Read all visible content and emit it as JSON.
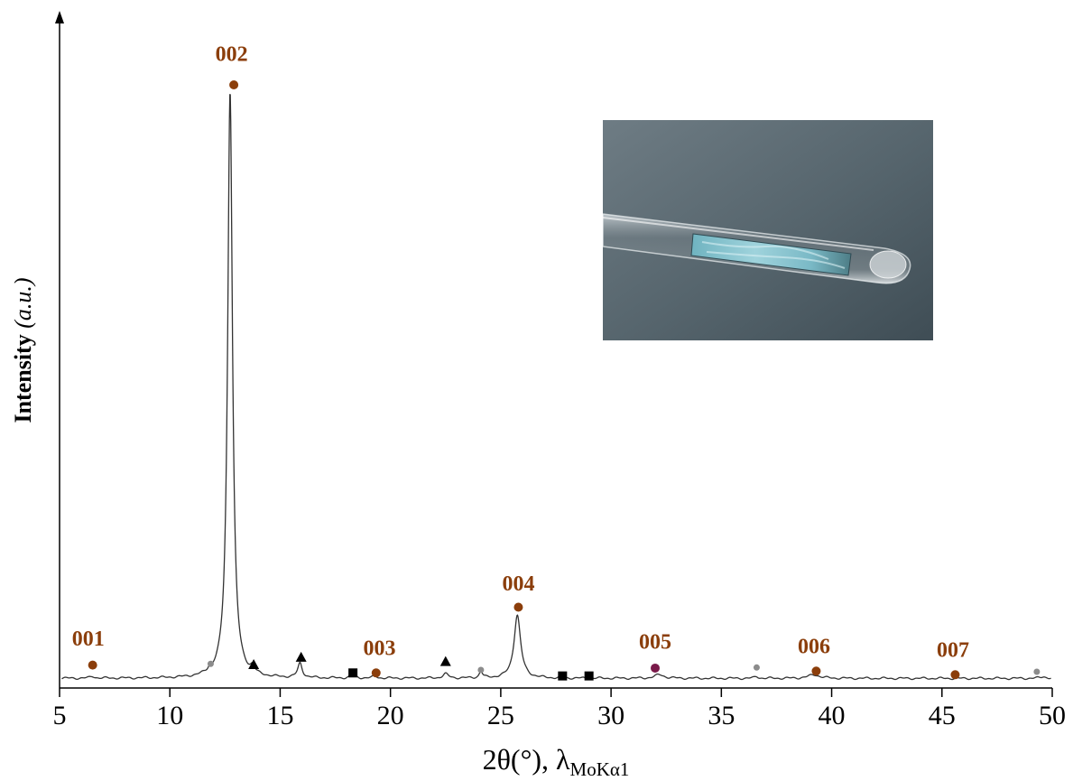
{
  "chart_data": {
    "type": "line",
    "title": "",
    "xlabel_main": "2θ(°), λ",
    "xlabel_sub": "MoKα1",
    "ylabel_main": "Intensity ",
    "ylabel_unit": "(a.u.)",
    "xlim": [
      5,
      50
    ],
    "xticks": [
      5,
      10,
      15,
      20,
      25,
      30,
      35,
      40,
      45,
      50
    ],
    "ylim": [
      0,
      100
    ],
    "grid": false,
    "baseline": 1.6,
    "peaks": [
      {
        "x": 6.5,
        "height": 0.3,
        "width": 0.12
      },
      {
        "x": 11.8,
        "height": 0.5,
        "width": 0.08
      },
      {
        "x": 12.73,
        "height": 97.5,
        "width": 0.13
      },
      {
        "x": 13.75,
        "height": 1.0,
        "width": 0.1
      },
      {
        "x": 15.9,
        "height": 2.4,
        "width": 0.12
      },
      {
        "x": 18.3,
        "height": 0.6,
        "width": 0.12
      },
      {
        "x": 19.3,
        "height": 0.4,
        "width": 0.1
      },
      {
        "x": 22.5,
        "height": 0.7,
        "width": 0.15
      },
      {
        "x": 24.1,
        "height": 1.2,
        "width": 0.08
      },
      {
        "x": 25.75,
        "height": 10.5,
        "width": 0.18
      },
      {
        "x": 32.2,
        "height": 0.6,
        "width": 0.25
      },
      {
        "x": 36.6,
        "height": 0.3,
        "width": 0.1
      },
      {
        "x": 39.2,
        "height": 0.6,
        "width": 0.3
      },
      {
        "x": 49.6,
        "height": 0.3,
        "width": 0.15
      }
    ],
    "markers": [
      {
        "x": 6.5,
        "y": 3.8,
        "shape": "circle",
        "color": "#8b3e0b"
      },
      {
        "x": 11.85,
        "y": 4.0,
        "shape": "dot",
        "color": "#8c8c8c"
      },
      {
        "x": 12.9,
        "y": 100.0,
        "shape": "circle",
        "color": "#8b3e0b"
      },
      {
        "x": 13.8,
        "y": 3.9,
        "shape": "triangle",
        "color": "#000000"
      },
      {
        "x": 15.95,
        "y": 5.1,
        "shape": "triangle",
        "color": "#000000"
      },
      {
        "x": 18.3,
        "y": 2.5,
        "shape": "square",
        "color": "#000000"
      },
      {
        "x": 19.35,
        "y": 2.5,
        "shape": "circle",
        "color": "#8b3e0b"
      },
      {
        "x": 22.5,
        "y": 4.4,
        "shape": "triangle",
        "color": "#000000"
      },
      {
        "x": 24.1,
        "y": 3.0,
        "shape": "dot",
        "color": "#8c8c8c"
      },
      {
        "x": 25.8,
        "y": 13.4,
        "shape": "circle",
        "color": "#8b3e0b"
      },
      {
        "x": 27.8,
        "y": 2.0,
        "shape": "square",
        "color": "#000000"
      },
      {
        "x": 29.0,
        "y": 2.0,
        "shape": "square",
        "color": "#000000"
      },
      {
        "x": 32.0,
        "y": 3.3,
        "shape": "circle",
        "color": "#7a1a4a"
      },
      {
        "x": 36.6,
        "y": 3.4,
        "shape": "dot",
        "color": "#8c8c8c"
      },
      {
        "x": 39.3,
        "y": 2.8,
        "shape": "circle",
        "color": "#8b3e0b"
      },
      {
        "x": 45.6,
        "y": 2.2,
        "shape": "circle",
        "color": "#8b3e0b"
      },
      {
        "x": 49.3,
        "y": 2.7,
        "shape": "dot",
        "color": "#8c8c8c"
      }
    ],
    "annotations": [
      {
        "text": "001",
        "x": 6.3,
        "y": 7.0,
        "color": "#8b3e0b"
      },
      {
        "text": "002",
        "x": 12.8,
        "y": 104.0,
        "color": "#8b3e0b"
      },
      {
        "text": "003",
        "x": 19.5,
        "y": 5.5,
        "color": "#8b3e0b"
      },
      {
        "text": "004",
        "x": 25.8,
        "y": 16.2,
        "color": "#8b3e0b"
      },
      {
        "text": "005",
        "x": 32.0,
        "y": 6.5,
        "color": "#8b3e0b"
      },
      {
        "text": "006",
        "x": 39.2,
        "y": 5.8,
        "color": "#8b3e0b"
      },
      {
        "text": "007",
        "x": 45.5,
        "y": 5.2,
        "color": "#8b3e0b"
      }
    ],
    "line_color": "#333333",
    "inset": "photo of a glass capillary tube containing a blue-green sample"
  }
}
